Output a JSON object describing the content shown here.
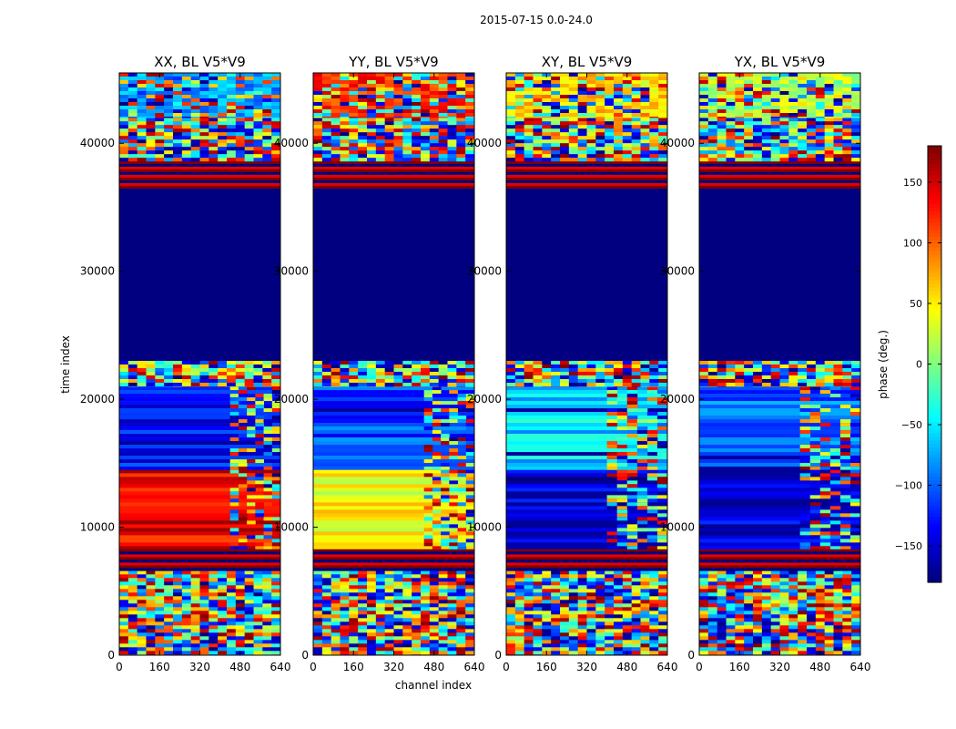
{
  "chart_data": {
    "type": "heatmap",
    "suptitle": "2015-07-15 0.0-24.0",
    "xlabel": "channel index",
    "ylabel": "time index",
    "xlim": [
      0,
      640
    ],
    "ylim": [
      0,
      45500
    ],
    "xticks": [
      0,
      160,
      320,
      480,
      640
    ],
    "yticks": [
      0,
      10000,
      20000,
      30000,
      40000
    ],
    "colorbar": {
      "label": "phase (deg.)",
      "range": [
        -180,
        180
      ],
      "ticks": [
        150,
        100,
        50,
        0,
        -50,
        -100,
        -150
      ],
      "tick_labels": [
        "150",
        "100",
        "50",
        "0",
        "−50",
        "−100",
        "−150"
      ],
      "colormap": "jet"
    },
    "panels": [
      {
        "title": "XX, BL V5*V9",
        "mid_phase": 140,
        "upper_phase": -130,
        "edge_phase": -80,
        "fringe_start_ch": 440
      },
      {
        "title": "YY, BL V5*V9",
        "mid_phase": 40,
        "upper_phase": -110,
        "edge_phase": 120,
        "fringe_start_ch": 440
      },
      {
        "title": "XY, BL V5*V9",
        "mid_phase": -150,
        "upper_phase": -60,
        "edge_phase": 60,
        "fringe_start_ch": 400
      },
      {
        "title": "YX, BL V5*V9",
        "mid_phase": -150,
        "upper_phase": -100,
        "edge_phase": 20,
        "fringe_start_ch": 400
      }
    ],
    "regions": [
      {
        "t_start": 0,
        "t_end": 6600,
        "kind": "noise"
      },
      {
        "t_start": 6600,
        "t_end": 8300,
        "kind": "stripes"
      },
      {
        "t_start": 8300,
        "t_end": 14500,
        "kind": "smooth-mid"
      },
      {
        "t_start": 14500,
        "t_end": 21000,
        "kind": "smooth-upper"
      },
      {
        "t_start": 21000,
        "t_end": 23000,
        "kind": "noise"
      },
      {
        "t_start": 23000,
        "t_end": 36400,
        "kind": "flat",
        "phase": -180
      },
      {
        "t_start": 36400,
        "t_end": 38600,
        "kind": "stripes"
      },
      {
        "t_start": 38600,
        "t_end": 42000,
        "kind": "noise"
      },
      {
        "t_start": 42000,
        "t_end": 45500,
        "kind": "edge-noise"
      }
    ]
  }
}
